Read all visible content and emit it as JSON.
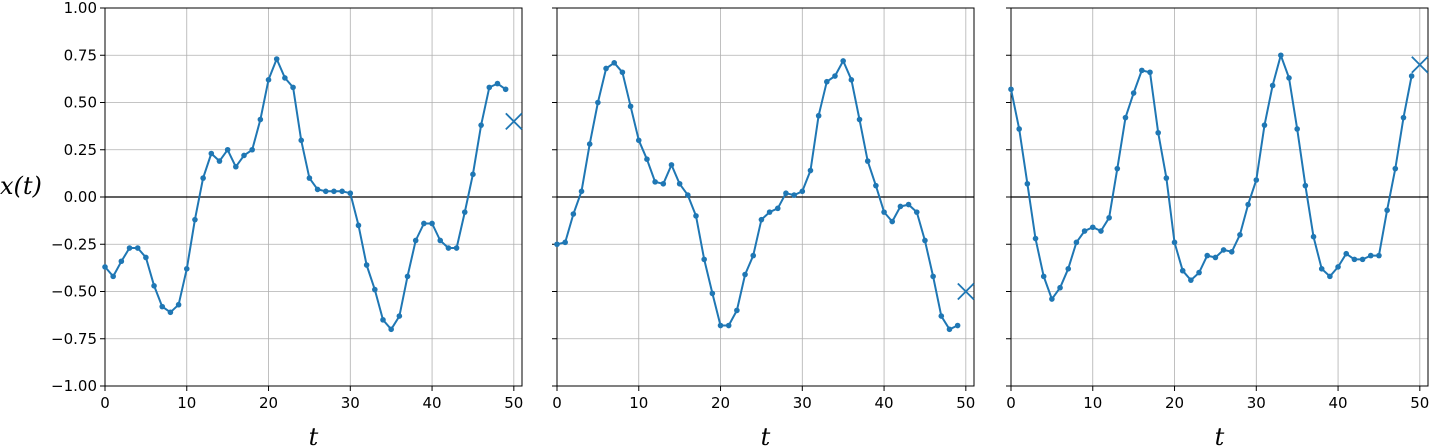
{
  "chart_data": [
    {
      "type": "line",
      "xlabel": "t",
      "ylabel": "x(t)",
      "xlim": [
        0,
        51
      ],
      "ylim": [
        -1,
        1
      ],
      "xticks": [
        "0",
        "10",
        "20",
        "30",
        "40",
        "50"
      ],
      "yticks": [
        "−1.00",
        "−0.75",
        "−0.50",
        "−0.25",
        "0.00",
        "0.25",
        "0.50",
        "0.75",
        "1.00"
      ],
      "grid": true,
      "series": [
        {
          "x": [
            0,
            1,
            2,
            3,
            4,
            5,
            6,
            7,
            8,
            9,
            10,
            11,
            12,
            13,
            14,
            15,
            16,
            17,
            18,
            19,
            20,
            21,
            22,
            23,
            24,
            25,
            26,
            27,
            28,
            29,
            30,
            31,
            32,
            33,
            34,
            35,
            36,
            37,
            38,
            39,
            40,
            41,
            42,
            43,
            44,
            45,
            46,
            47,
            48,
            49
          ],
          "values": [
            -0.37,
            -0.42,
            -0.34,
            -0.27,
            -0.27,
            -0.32,
            -0.47,
            -0.58,
            -0.61,
            -0.57,
            -0.38,
            -0.12,
            0.1,
            0.23,
            0.19,
            0.25,
            0.16,
            0.22,
            0.25,
            0.41,
            0.62,
            0.73,
            0.63,
            0.58,
            0.3,
            0.1,
            0.04,
            0.03,
            0.03,
            0.03,
            0.02,
            -0.15,
            -0.36,
            -0.49,
            -0.65,
            -0.7,
            -0.63,
            -0.42,
            -0.23,
            -0.14,
            -0.14,
            -0.23,
            -0.27,
            -0.27,
            -0.08,
            0.12,
            0.38,
            0.58,
            0.6,
            0.57
          ]
        }
      ],
      "target": {
        "x": 50,
        "y": 0.4
      }
    },
    {
      "type": "line",
      "xlabel": "t",
      "xlim": [
        0,
        51
      ],
      "ylim": [
        -1,
        1
      ],
      "xticks": [
        "0",
        "10",
        "20",
        "30",
        "40",
        "50"
      ],
      "grid": true,
      "series": [
        {
          "x": [
            0,
            1,
            2,
            3,
            4,
            5,
            6,
            7,
            8,
            9,
            10,
            11,
            12,
            13,
            14,
            15,
            16,
            17,
            18,
            19,
            20,
            21,
            22,
            23,
            24,
            25,
            26,
            27,
            28,
            29,
            30,
            31,
            32,
            33,
            34,
            35,
            36,
            37,
            38,
            39,
            40,
            41,
            42,
            43,
            44,
            45,
            46,
            47,
            48,
            49
          ],
          "values": [
            -0.25,
            -0.24,
            -0.09,
            0.03,
            0.28,
            0.5,
            0.68,
            0.71,
            0.66,
            0.48,
            0.3,
            0.2,
            0.08,
            0.07,
            0.17,
            0.07,
            0.01,
            -0.1,
            -0.33,
            -0.51,
            -0.68,
            -0.68,
            -0.6,
            -0.41,
            -0.31,
            -0.12,
            -0.08,
            -0.06,
            0.02,
            0.01,
            0.03,
            0.14,
            0.43,
            0.61,
            0.64,
            0.72,
            0.62,
            0.41,
            0.19,
            0.06,
            -0.08,
            -0.13,
            -0.05,
            -0.04,
            -0.08,
            -0.23,
            -0.42,
            -0.63,
            -0.7,
            -0.68
          ]
        }
      ],
      "target": {
        "x": 50,
        "y": -0.5
      }
    },
    {
      "type": "line",
      "xlabel": "t",
      "xlim": [
        0,
        51
      ],
      "ylim": [
        -1,
        1
      ],
      "xticks": [
        "0",
        "10",
        "20",
        "30",
        "40",
        "50"
      ],
      "grid": true,
      "series": [
        {
          "x": [
            0,
            1,
            2,
            3,
            4,
            5,
            6,
            7,
            8,
            9,
            10,
            11,
            12,
            13,
            14,
            15,
            16,
            17,
            18,
            19,
            20,
            21,
            22,
            23,
            24,
            25,
            26,
            27,
            28,
            29,
            30,
            31,
            32,
            33,
            34,
            35,
            36,
            37,
            38,
            39,
            40,
            41,
            42,
            43,
            44,
            45,
            46,
            47,
            48,
            49
          ],
          "values": [
            0.57,
            0.36,
            0.07,
            -0.22,
            -0.42,
            -0.54,
            -0.48,
            -0.38,
            -0.24,
            -0.18,
            -0.16,
            -0.18,
            -0.11,
            0.15,
            0.42,
            0.55,
            0.67,
            0.66,
            0.34,
            0.1,
            -0.24,
            -0.39,
            -0.44,
            -0.4,
            -0.31,
            -0.32,
            -0.28,
            -0.29,
            -0.2,
            -0.04,
            0.09,
            0.38,
            0.59,
            0.75,
            0.63,
            0.36,
            0.06,
            -0.21,
            -0.38,
            -0.42,
            -0.37,
            -0.3,
            -0.33,
            -0.33,
            -0.31,
            -0.31,
            -0.07,
            0.15,
            0.42,
            0.64
          ]
        }
      ],
      "target": {
        "x": 50,
        "y": 0.7
      }
    }
  ],
  "colors": {
    "series": "#1f77b4",
    "grid": "#b0b0b0",
    "axis": "#000000"
  }
}
